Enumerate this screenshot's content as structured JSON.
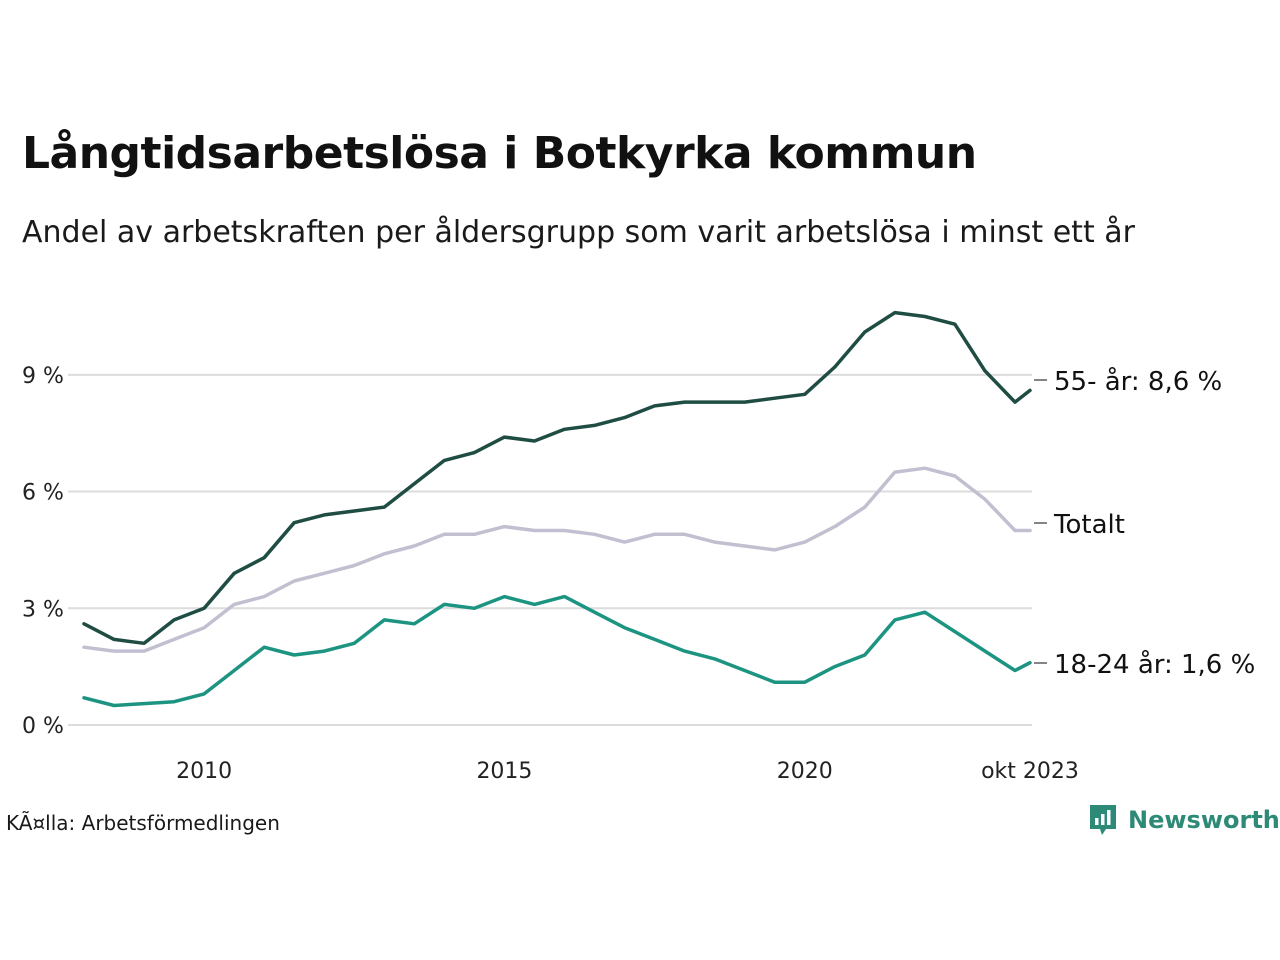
{
  "header": {
    "title": "Långtidsarbetslösa i Botkyrka kommun",
    "subtitle": "Andel av arbetskraften per åldersgrupp som varit arbetslösa i minst ett år"
  },
  "footer": {
    "source": "KÃ¤lla: Arbetsförmedlingen",
    "brand": "Newsworthy",
    "brand_color": "#2d8a77"
  },
  "chart_data": {
    "type": "line",
    "title": "Långtidsarbetslösa i Botkyrka kommun",
    "subtitle": "Andel av arbetskraften per åldersgrupp som varit arbetslösa i minst ett år",
    "x_start": "2008-01",
    "x_end": "2023-10",
    "x_ticks": [
      {
        "value": "2010-01",
        "label": "2010"
      },
      {
        "value": "2015-01",
        "label": "2015"
      },
      {
        "value": "2020-01",
        "label": "2020"
      },
      {
        "value": "2023-10",
        "label": "okt 2023"
      }
    ],
    "ylim": [
      0,
      11
    ],
    "y_ticks": [
      {
        "value": 0,
        "label": "0 %"
      },
      {
        "value": 3,
        "label": "3 %"
      },
      {
        "value": 6,
        "label": "6 %"
      },
      {
        "value": 9,
        "label": "9 %"
      }
    ],
    "grid": true,
    "series": [
      {
        "name": "55- år",
        "end_label": "55- år: 8,6 %",
        "color": "#1f4d44",
        "points": [
          [
            "2008-01",
            2.6
          ],
          [
            "2008-07",
            2.2
          ],
          [
            "2009-01",
            2.1
          ],
          [
            "2009-07",
            2.7
          ],
          [
            "2010-01",
            3.0
          ],
          [
            "2010-07",
            3.9
          ],
          [
            "2011-01",
            4.3
          ],
          [
            "2011-07",
            5.2
          ],
          [
            "2012-01",
            5.4
          ],
          [
            "2012-07",
            5.5
          ],
          [
            "2013-01",
            5.6
          ],
          [
            "2013-07",
            6.2
          ],
          [
            "2014-01",
            6.8
          ],
          [
            "2014-07",
            7.0
          ],
          [
            "2015-01",
            7.4
          ],
          [
            "2015-07",
            7.3
          ],
          [
            "2016-01",
            7.6
          ],
          [
            "2016-07",
            7.7
          ],
          [
            "2017-01",
            7.9
          ],
          [
            "2017-07",
            8.2
          ],
          [
            "2018-01",
            8.3
          ],
          [
            "2018-07",
            8.3
          ],
          [
            "2019-01",
            8.3
          ],
          [
            "2019-07",
            8.4
          ],
          [
            "2020-01",
            8.5
          ],
          [
            "2020-07",
            9.2
          ],
          [
            "2021-01",
            10.1
          ],
          [
            "2021-07",
            10.6
          ],
          [
            "2022-01",
            10.5
          ],
          [
            "2022-07",
            10.3
          ],
          [
            "2023-01",
            9.1
          ],
          [
            "2023-07",
            8.3
          ],
          [
            "2023-10",
            8.6
          ]
        ]
      },
      {
        "name": "Totalt",
        "end_label": "Totalt",
        "color": "#c2c0d0",
        "points": [
          [
            "2008-01",
            2.0
          ],
          [
            "2008-07",
            1.9
          ],
          [
            "2009-01",
            1.9
          ],
          [
            "2009-07",
            2.2
          ],
          [
            "2010-01",
            2.5
          ],
          [
            "2010-07",
            3.1
          ],
          [
            "2011-01",
            3.3
          ],
          [
            "2011-07",
            3.7
          ],
          [
            "2012-01",
            3.9
          ],
          [
            "2012-07",
            4.1
          ],
          [
            "2013-01",
            4.4
          ],
          [
            "2013-07",
            4.6
          ],
          [
            "2014-01",
            4.9
          ],
          [
            "2014-07",
            4.9
          ],
          [
            "2015-01",
            5.1
          ],
          [
            "2015-07",
            5.0
          ],
          [
            "2016-01",
            5.0
          ],
          [
            "2016-07",
            4.9
          ],
          [
            "2017-01",
            4.7
          ],
          [
            "2017-07",
            4.9
          ],
          [
            "2018-01",
            4.9
          ],
          [
            "2018-07",
            4.7
          ],
          [
            "2019-01",
            4.6
          ],
          [
            "2019-07",
            4.5
          ],
          [
            "2020-01",
            4.7
          ],
          [
            "2020-07",
            5.1
          ],
          [
            "2021-01",
            5.6
          ],
          [
            "2021-07",
            6.5
          ],
          [
            "2022-01",
            6.6
          ],
          [
            "2022-07",
            6.4
          ],
          [
            "2023-01",
            5.8
          ],
          [
            "2023-07",
            5.0
          ],
          [
            "2023-10",
            5.0
          ]
        ]
      },
      {
        "name": "18-24 år",
        "end_label": "18-24 år: 1,6 %",
        "color": "#1d9481",
        "points": [
          [
            "2008-01",
            0.7
          ],
          [
            "2008-07",
            0.5
          ],
          [
            "2009-01",
            0.55
          ],
          [
            "2009-07",
            0.6
          ],
          [
            "2010-01",
            0.8
          ],
          [
            "2010-07",
            1.4
          ],
          [
            "2011-01",
            2.0
          ],
          [
            "2011-07",
            1.8
          ],
          [
            "2012-01",
            1.9
          ],
          [
            "2012-07",
            2.1
          ],
          [
            "2013-01",
            2.7
          ],
          [
            "2013-07",
            2.6
          ],
          [
            "2014-01",
            3.1
          ],
          [
            "2014-07",
            3.0
          ],
          [
            "2015-01",
            3.3
          ],
          [
            "2015-07",
            3.1
          ],
          [
            "2016-01",
            3.3
          ],
          [
            "2016-07",
            2.9
          ],
          [
            "2017-01",
            2.5
          ],
          [
            "2017-07",
            2.2
          ],
          [
            "2018-01",
            1.9
          ],
          [
            "2018-07",
            1.7
          ],
          [
            "2019-01",
            1.4
          ],
          [
            "2019-07",
            1.1
          ],
          [
            "2020-01",
            1.1
          ],
          [
            "2020-07",
            1.5
          ],
          [
            "2021-01",
            1.8
          ],
          [
            "2021-07",
            2.7
          ],
          [
            "2022-01",
            2.9
          ],
          [
            "2022-07",
            2.4
          ],
          [
            "2023-01",
            1.9
          ],
          [
            "2023-07",
            1.4
          ],
          [
            "2023-10",
            1.6
          ]
        ]
      }
    ]
  }
}
